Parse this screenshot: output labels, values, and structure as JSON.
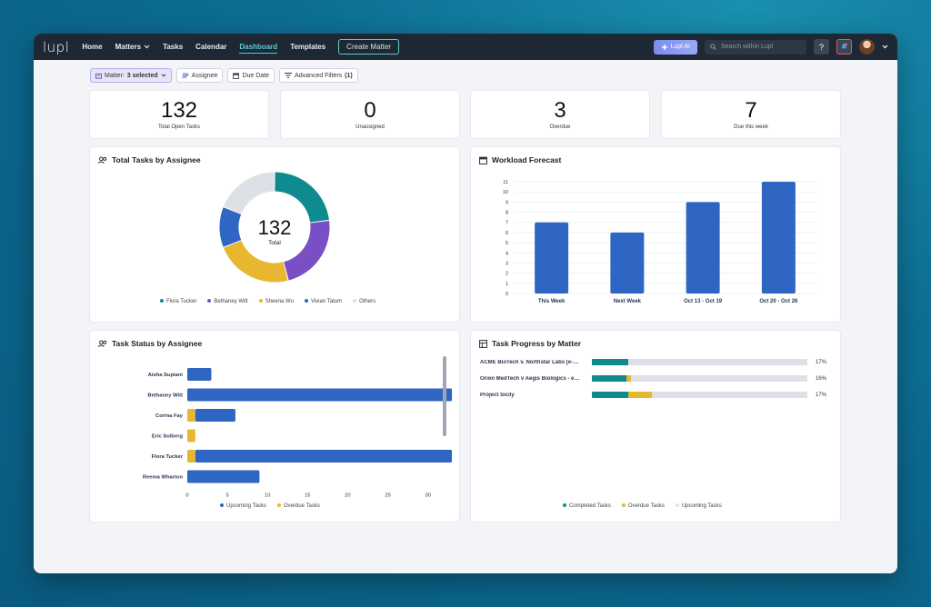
{
  "nav": {
    "logo": "lupl",
    "items": [
      "Home",
      "Matters",
      "Tasks",
      "Calendar",
      "Dashboard",
      "Templates"
    ],
    "create_label": "Create Matter",
    "ai_label": "Lupl AI",
    "search_placeholder": "Search within Lupl",
    "help_label": "?"
  },
  "filters": {
    "matter_prefix": "Matter:",
    "matter_value": "3 selected",
    "assignee": "Assignee",
    "due_date": "Due Date",
    "advanced_prefix": "Advanced Filters",
    "advanced_count": "(1)"
  },
  "stats": [
    {
      "value": "132",
      "label": "Total Open Tasks"
    },
    {
      "value": "0",
      "label": "Unassigned"
    },
    {
      "value": "3",
      "label": "Overdue"
    },
    {
      "value": "7",
      "label": "Due this week"
    }
  ],
  "colors": {
    "teal": "#0f8a8f",
    "purple": "#7b4fc4",
    "yellow": "#e8b730",
    "blue": "#2f66c4",
    "gray": "#dde1e7"
  },
  "donut": {
    "title": "Total Tasks by Assignee",
    "center_value": "132",
    "center_label": "Total"
  },
  "workload": {
    "title": "Workload Forecast"
  },
  "status": {
    "title": "Task Status by Assignee"
  },
  "progress": {
    "title": "Task Progress by Matter"
  },
  "chart_data": [
    {
      "type": "pie",
      "title": "Total Tasks by Assignee",
      "series": [
        {
          "name": "Flora Tucker",
          "value": 0.23,
          "color": "#0f8a8f"
        },
        {
          "name": "Bethaney Witt",
          "value": 0.23,
          "color": "#7b4fc4"
        },
        {
          "name": "Sheena Wu",
          "value": 0.23,
          "color": "#e8b730"
        },
        {
          "name": "Vivian Tatum",
          "value": 0.12,
          "color": "#2f66c4"
        },
        {
          "name": "Others",
          "value": 0.19,
          "color": "#dde1e7"
        }
      ]
    },
    {
      "type": "bar",
      "title": "Workload Forecast",
      "categories": [
        "This Week",
        "Next Week",
        "Oct 13 - Oct 19",
        "Oct 20 - Oct 26"
      ],
      "values": [
        7,
        6,
        9,
        11
      ],
      "ylim": [
        0,
        11
      ],
      "yticks": [
        0,
        1,
        2,
        3,
        4,
        5,
        6,
        7,
        8,
        9,
        10,
        11
      ]
    },
    {
      "type": "bar",
      "orientation": "horizontal",
      "stacked": true,
      "title": "Task Status by Assignee",
      "categories": [
        "Aisha Supiani",
        "Bethaney Witt",
        "Corina Fay",
        "Eric Solberg",
        "Flora Tucker",
        "Reema Wharton"
      ],
      "series": [
        {
          "name": "Overdue Tasks",
          "color": "#e8b730",
          "values": [
            0,
            0,
            1,
            1,
            1,
            0
          ]
        },
        {
          "name": "Upcoming Tasks",
          "color": "#2f66c4",
          "values": [
            3,
            33,
            5,
            0,
            32,
            9
          ]
        }
      ],
      "xlim": [
        0,
        35
      ],
      "xticks": [
        0,
        5,
        10,
        15,
        20,
        25,
        30
      ]
    },
    {
      "type": "bar",
      "orientation": "horizontal",
      "stacked": true,
      "title": "Task Progress by Matter",
      "categories": [
        "ACME BioTech v. Northstar Labs [e-…",
        "Orion MedTech v Aegis Biologics - e…",
        "Project Sicily"
      ],
      "series": [
        {
          "name": "Completed Tasks",
          "color": "#0f8a8f",
          "values": [
            17,
            16,
            17
          ]
        },
        {
          "name": "Overdue Tasks",
          "color": "#e8b730",
          "values": [
            0,
            2,
            11
          ]
        },
        {
          "name": "Upcoming Tasks",
          "color": "#dde1e7",
          "values": [
            83,
            82,
            72
          ]
        }
      ],
      "labels": [
        "17%",
        "16%",
        "17%"
      ]
    }
  ]
}
